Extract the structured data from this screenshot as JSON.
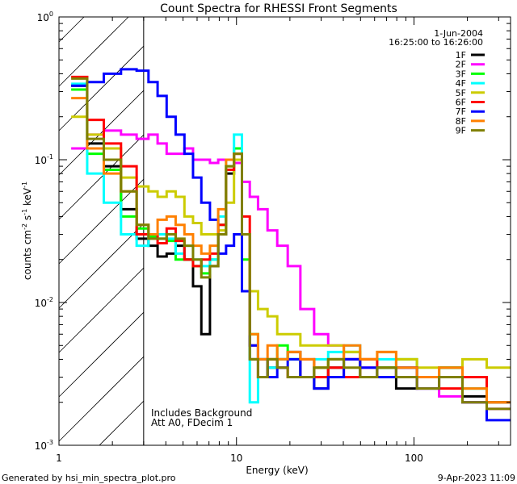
{
  "chart_data": {
    "type": "line",
    "title": "Count Spectra for RHESSI Front Segments",
    "xlabel": "Energy (keV)",
    "ylabel": "counts cm-2 s-1 keV-1",
    "ylabel_parts": {
      "main": "counts cm",
      "e1": "-2",
      "s": " s",
      "e2": "-1",
      "k": " keV",
      "e3": "-1"
    },
    "xscale": "log",
    "yscale": "log",
    "xlim": [
      1,
      350
    ],
    "ylim": [
      0.001,
      1
    ],
    "xticks": [
      {
        "v": 1,
        "label": "1"
      },
      {
        "v": 10,
        "label": "10"
      },
      {
        "v": 100,
        "label": "100"
      }
    ],
    "yticks": [
      {
        "v": 1,
        "base": "10",
        "exp": "0"
      },
      {
        "v": 0.1,
        "base": "10",
        "exp": "-1"
      },
      {
        "v": 0.01,
        "base": "10",
        "exp": "-2"
      },
      {
        "v": 0.001,
        "base": "10",
        "exp": "-3"
      }
    ],
    "hatched_region_keV": [
      1,
      3
    ],
    "legend_placement": "top-right",
    "legend_header": [
      "1-Jun-2004",
      "16:25:00 to 16:26:00"
    ],
    "annotations": [
      "Includes Background",
      "Att A0, FDecim 1"
    ],
    "x": [
      1.3,
      1.6,
      2.0,
      2.5,
      3.0,
      3.4,
      3.8,
      4.3,
      4.8,
      5.4,
      6.0,
      6.7,
      7.5,
      8.3,
      9.2,
      10.2,
      11.3,
      12.5,
      14,
      16,
      18,
      21,
      25,
      30,
      36,
      45,
      55,
      70,
      90,
      120,
      160,
      220,
      300
    ],
    "series": [
      {
        "name": "1F",
        "color": "#000000",
        "values": [
          0.33,
          0.13,
          0.09,
          0.045,
          0.028,
          0.025,
          0.021,
          0.022,
          0.025,
          0.02,
          0.013,
          0.006,
          0.018,
          0.03,
          0.08,
          0.1,
          0.03,
          0.004,
          0.003,
          0.0035,
          0.004,
          0.0045,
          0.003,
          0.0025,
          0.0035,
          0.004,
          0.003,
          0.0035,
          0.0025,
          0.003,
          0.0035,
          0.0022,
          0.002
        ]
      },
      {
        "name": "2F",
        "color": "#ff00ff",
        "values": [
          0.12,
          0.15,
          0.16,
          0.15,
          0.14,
          0.15,
          0.13,
          0.11,
          0.11,
          0.12,
          0.1,
          0.1,
          0.095,
          0.1,
          0.1,
          0.095,
          0.07,
          0.055,
          0.045,
          0.032,
          0.025,
          0.018,
          0.009,
          0.006,
          0.005,
          0.004,
          0.0035,
          0.003,
          0.003,
          0.0025,
          0.0022,
          0.002,
          0.0018
        ]
      },
      {
        "name": "3F",
        "color": "#00ff00",
        "values": [
          0.31,
          0.11,
          0.085,
          0.04,
          0.033,
          0.029,
          0.028,
          0.027,
          0.02,
          0.02,
          0.018,
          0.016,
          0.02,
          0.035,
          0.09,
          0.12,
          0.02,
          0.006,
          0.004,
          0.004,
          0.005,
          0.004,
          0.003,
          0.0035,
          0.004,
          0.0045,
          0.003,
          0.0035,
          0.004,
          0.003,
          0.0035,
          0.0025,
          0.002
        ]
      },
      {
        "name": "4F",
        "color": "#00ffff",
        "values": [
          0.34,
          0.08,
          0.05,
          0.03,
          0.025,
          0.03,
          0.03,
          0.028,
          0.022,
          0.025,
          0.02,
          0.018,
          0.02,
          0.04,
          0.1,
          0.15,
          0.03,
          0.002,
          0.003,
          0.0035,
          0.004,
          0.004,
          0.003,
          0.004,
          0.0045,
          0.005,
          0.003,
          0.004,
          0.0035,
          0.003,
          0.003,
          0.0025,
          0.002
        ]
      },
      {
        "name": "5F",
        "color": "#cccc00",
        "values": [
          0.2,
          0.15,
          0.12,
          0.075,
          0.065,
          0.06,
          0.055,
          0.06,
          0.055,
          0.04,
          0.036,
          0.03,
          0.03,
          0.032,
          0.05,
          0.1,
          0.03,
          0.012,
          0.009,
          0.008,
          0.006,
          0.006,
          0.005,
          0.005,
          0.005,
          0.0045,
          0.004,
          0.0045,
          0.004,
          0.0035,
          0.003,
          0.004,
          0.0035
        ]
      },
      {
        "name": "6F",
        "color": "#ff0000",
        "values": [
          0.38,
          0.19,
          0.13,
          0.09,
          0.03,
          0.03,
          0.026,
          0.033,
          0.027,
          0.02,
          0.018,
          0.02,
          0.022,
          0.035,
          0.085,
          0.11,
          0.04,
          0.005,
          0.003,
          0.004,
          0.0035,
          0.003,
          0.004,
          0.003,
          0.0035,
          0.003,
          0.004,
          0.003,
          0.0035,
          0.003,
          0.0025,
          0.003,
          0.002
        ]
      },
      {
        "name": "7F",
        "color": "#0000ff",
        "values": [
          0.33,
          0.35,
          0.4,
          0.43,
          0.42,
          0.35,
          0.28,
          0.2,
          0.15,
          0.11,
          0.075,
          0.05,
          0.038,
          0.022,
          0.025,
          0.03,
          0.012,
          0.005,
          0.004,
          0.003,
          0.0035,
          0.004,
          0.003,
          0.0025,
          0.003,
          0.004,
          0.0035,
          0.003,
          0.0035,
          0.0025,
          0.003,
          0.002,
          0.0015
        ]
      },
      {
        "name": "8F",
        "color": "#ff8000",
        "values": [
          0.27,
          0.12,
          0.08,
          0.06,
          0.035,
          0.03,
          0.038,
          0.04,
          0.035,
          0.03,
          0.025,
          0.022,
          0.025,
          0.045,
          0.1,
          0.11,
          0.03,
          0.006,
          0.004,
          0.005,
          0.004,
          0.0045,
          0.004,
          0.0035,
          0.004,
          0.005,
          0.004,
          0.0045,
          0.0035,
          0.003,
          0.0035,
          0.0025,
          0.002
        ]
      },
      {
        "name": "9F",
        "color": "#808000",
        "values": [
          0.37,
          0.14,
          0.1,
          0.06,
          0.035,
          0.028,
          0.028,
          0.03,
          0.028,
          0.025,
          0.02,
          0.015,
          0.018,
          0.03,
          0.09,
          0.11,
          0.03,
          0.004,
          0.003,
          0.004,
          0.0035,
          0.003,
          0.003,
          0.0035,
          0.004,
          0.0035,
          0.003,
          0.0035,
          0.003,
          0.0025,
          0.003,
          0.002,
          0.0018
        ]
      }
    ]
  },
  "footer": {
    "left": "Generated by hsi_min_spectra_plot.pro",
    "right": "9-Apr-2023 11:09"
  }
}
